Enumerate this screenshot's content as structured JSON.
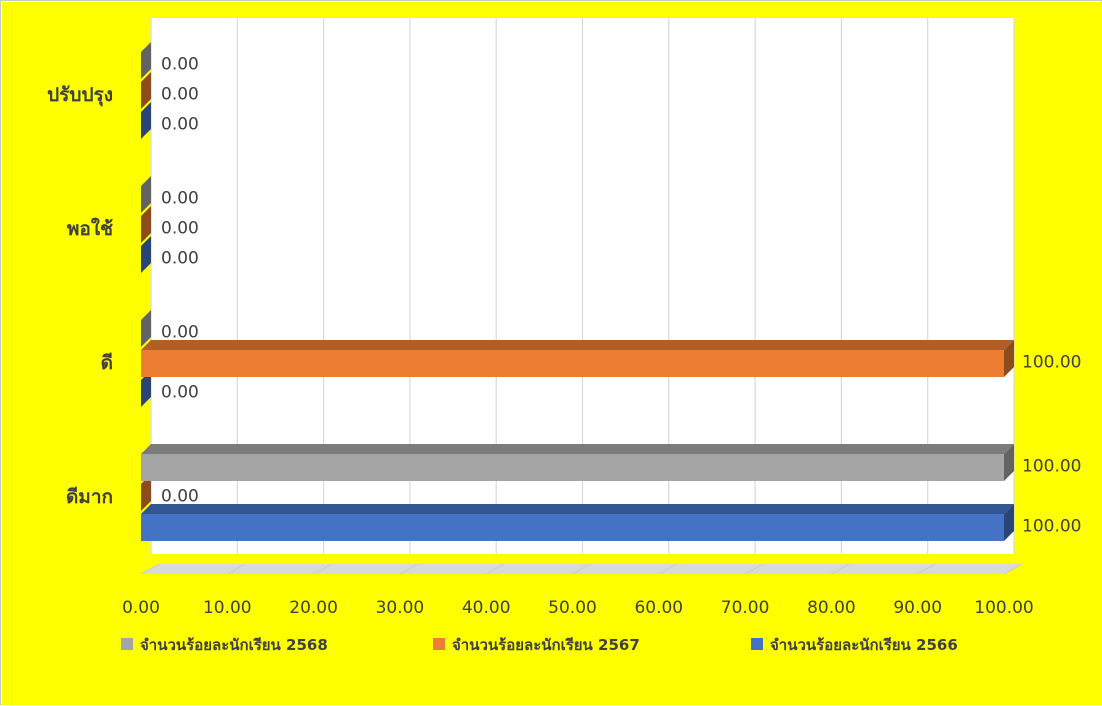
{
  "chart_data": {
    "type": "bar",
    "orientation": "horizontal",
    "three_d": true,
    "background_color": "#ffff00",
    "plot_background_color": "#ffffff",
    "grid": true,
    "legend_position": "bottom",
    "categories": [
      "ดีมาก",
      "ดี",
      "พอใช้",
      "ปรับปรุง"
    ],
    "series": [
      {
        "name": "จำนวนร้อยละนักเรียน 2566",
        "color": "#4472c4",
        "values": [
          100,
          0,
          0,
          0
        ],
        "labels": [
          "100.00",
          "0.00",
          "0.00",
          "0.00"
        ]
      },
      {
        "name": "จำนวนร้อยละนักเรียน 2567",
        "color": "#ed7d31",
        "values": [
          0,
          100,
          0,
          0
        ],
        "labels": [
          "0.00",
          "100.00",
          "0.00",
          "0.00"
        ]
      },
      {
        "name": "จำนวนร้อยละนักเรียน 2568",
        "color": "#a5a5a5",
        "values": [
          100,
          0,
          0,
          0
        ],
        "labels": [
          "100.00",
          "0.00",
          "0.00",
          "0.00"
        ]
      }
    ],
    "xlim": [
      0,
      100
    ],
    "x_ticks": [
      "0.00",
      "10.00",
      "20.00",
      "30.00",
      "40.00",
      "50.00",
      "60.00",
      "70.00",
      "80.00",
      "90.00",
      "100.00"
    ],
    "legend_order": [
      2,
      1,
      0
    ]
  }
}
